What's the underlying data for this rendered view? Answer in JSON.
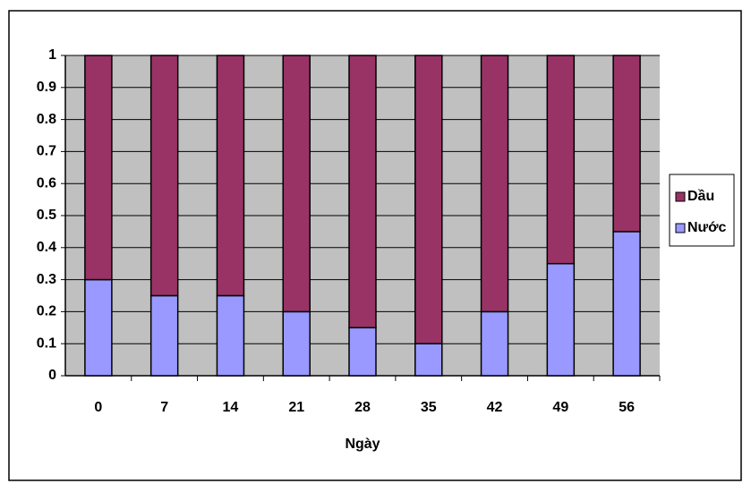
{
  "chart_data": {
    "type": "stacked-bar",
    "x_label": "Ngày",
    "categories": [
      "0",
      "7",
      "14",
      "21",
      "28",
      "35",
      "42",
      "49",
      "56"
    ],
    "series": [
      {
        "name": "Nước",
        "color": "#9999ff",
        "values": [
          0.3,
          0.25,
          0.25,
          0.2,
          0.15,
          0.1,
          0.2,
          0.35,
          0.45
        ]
      },
      {
        "name": "Dầu",
        "color": "#993366",
        "values": [
          0.7,
          0.75,
          0.75,
          0.8,
          0.85,
          0.9,
          0.8,
          0.65,
          0.55
        ]
      }
    ],
    "ylim": [
      0,
      1
    ],
    "yticks": [
      0,
      0.1,
      0.2,
      0.3,
      0.4,
      0.5,
      0.6,
      0.7,
      0.8,
      0.9,
      1
    ],
    "grid": true,
    "legend": "right",
    "plot_background": "#c0c0c0"
  }
}
